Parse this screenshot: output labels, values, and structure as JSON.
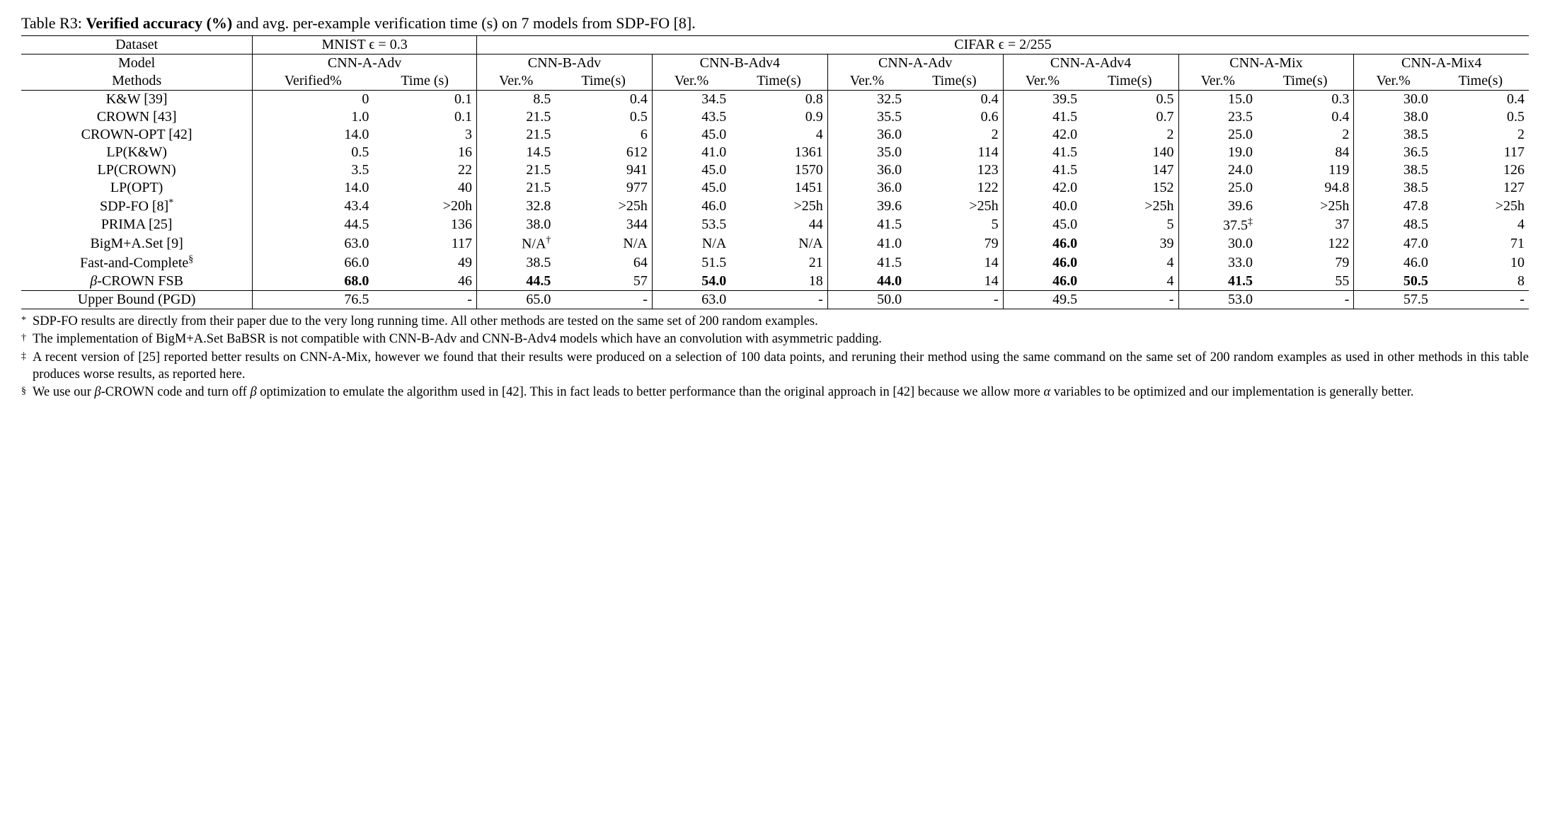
{
  "caption": {
    "prefix": "Table R3: ",
    "bold": "Verified accuracy (%)",
    "rest": " and avg. per-example verification time (s) on 7 models from SDP-FO [8]."
  },
  "header1": {
    "dataset_label": "Dataset",
    "mnist": "MNIST ϵ = 0.3",
    "cifar": "CIFAR ϵ = 2/255"
  },
  "header2": {
    "model_label": "Model",
    "methods_label": "Methods",
    "models": [
      "CNN-A-Adv",
      "CNN-B-Adv",
      "CNN-B-Adv4",
      "CNN-A-Adv",
      "CNN-A-Adv4",
      "CNN-A-Mix",
      "CNN-A-Mix4"
    ],
    "sub_first": [
      "Verified%",
      "Time (s)"
    ],
    "sub_rest": [
      "Ver.%",
      "Time(s)"
    ]
  },
  "rows": [
    {
      "name": "K&W [39]",
      "v": [
        "0",
        "0.1",
        "8.5",
        "0.4",
        "34.5",
        "0.8",
        "32.5",
        "0.4",
        "39.5",
        "0.5",
        "15.0",
        "0.3",
        "30.0",
        "0.4"
      ]
    },
    {
      "name": "CROWN [43]",
      "v": [
        "1.0",
        "0.1",
        "21.5",
        "0.5",
        "43.5",
        "0.9",
        "35.5",
        "0.6",
        "41.5",
        "0.7",
        "23.5",
        "0.4",
        "38.0",
        "0.5"
      ]
    },
    {
      "name": "CROWN-OPT [42]",
      "v": [
        "14.0",
        "3",
        "21.5",
        "6",
        "45.0",
        "4",
        "36.0",
        "2",
        "42.0",
        "2",
        "25.0",
        "2",
        "38.5",
        "2"
      ]
    },
    {
      "name": "LP(K&W)",
      "v": [
        "0.5",
        "16",
        "14.5",
        "612",
        "41.0",
        "1361",
        "35.0",
        "114",
        "41.5",
        "140",
        "19.0",
        "84",
        "36.5",
        "117"
      ]
    },
    {
      "name": "LP(CROWN)",
      "v": [
        "3.5",
        "22",
        "21.5",
        "941",
        "45.0",
        "1570",
        "36.0",
        "123",
        "41.5",
        "147",
        "24.0",
        "119",
        "38.5",
        "126"
      ]
    },
    {
      "name": "LP(OPT)",
      "v": [
        "14.0",
        "40",
        "21.5",
        "977",
        "45.0",
        "1451",
        "36.0",
        "122",
        "42.0",
        "152",
        "25.0",
        "94.8",
        "38.5",
        "127"
      ]
    },
    {
      "name": "SDP-FO [8]",
      "sup": "*",
      "v": [
        "43.4",
        ">20h",
        "32.8",
        ">25h",
        "46.0",
        ">25h",
        "39.6",
        ">25h",
        "40.0",
        ">25h",
        "39.6",
        ">25h",
        "47.8",
        ">25h"
      ]
    },
    {
      "name": "PRIMA [25]",
      "v": [
        "44.5",
        "136",
        "38.0",
        "344",
        "53.5",
        "44",
        "41.5",
        "5",
        "45.0",
        "5",
        "37.5",
        "37",
        "48.5",
        "4"
      ],
      "cell_sup": {
        "10": "‡"
      }
    },
    {
      "name": "BigM+A.Set [9]",
      "v": [
        "63.0",
        "117",
        "N/A",
        "N/A",
        "N/A",
        "N/A",
        "41.0",
        "79",
        "46.0",
        "39",
        "30.0",
        "122",
        "47.0",
        "71"
      ],
      "cell_sup": {
        "2": "†"
      },
      "bold_idx": [
        8
      ]
    },
    {
      "name": "Fast-and-Complete",
      "sup": "§",
      "v": [
        "66.0",
        "49",
        "38.5",
        "64",
        "51.5",
        "21",
        "41.5",
        "14",
        "46.0",
        "4",
        "33.0",
        "79",
        "46.0",
        "10"
      ],
      "bold_idx": [
        8
      ]
    },
    {
      "name": "β-CROWN FSB",
      "name_italic_beta": true,
      "v": [
        "68.0",
        "46",
        "44.5",
        "57",
        "54.0",
        "18",
        "44.0",
        "14",
        "46.0",
        "4",
        "41.5",
        "55",
        "50.5",
        "8"
      ],
      "bold_idx": [
        0,
        2,
        4,
        6,
        8,
        10,
        12
      ]
    }
  ],
  "upper": {
    "name": "Upper Bound (PGD)",
    "v": [
      "76.5",
      "-",
      "65.0",
      "-",
      "63.0",
      "-",
      "50.0",
      "-",
      "49.5",
      "-",
      "53.0",
      "-",
      "57.5",
      "-"
    ]
  },
  "footnotes": [
    {
      "mark": "*",
      "text": "SDP-FO results are directly from their paper due to the very long running time. All other methods are tested on the same set of 200 random examples."
    },
    {
      "mark": "†",
      "text": "The implementation of BigM+A.Set BaBSR is not compatible with CNN-B-Adv and CNN-B-Adv4 models which have an convolution with asymmetric padding."
    },
    {
      "mark": "‡",
      "text": "A recent version of [25] reported better results on CNN-A-Mix, however we found that their results were produced on a selection of 100 data points, and reruning their method using the same command on the same set of 200 random examples as used in other methods in this table produces worse results, as reported here."
    },
    {
      "mark": "§",
      "text_html": "We use our <span class='italic'>β</span>-CROWN code and turn off <span class='italic'>β</span> optimization to emulate the algorithm used in [42]. This in fact leads to better performance than the original approach in [42] because we allow more <span class='italic'>α</span> variables to be optimized and our implementation is generally better."
    }
  ]
}
